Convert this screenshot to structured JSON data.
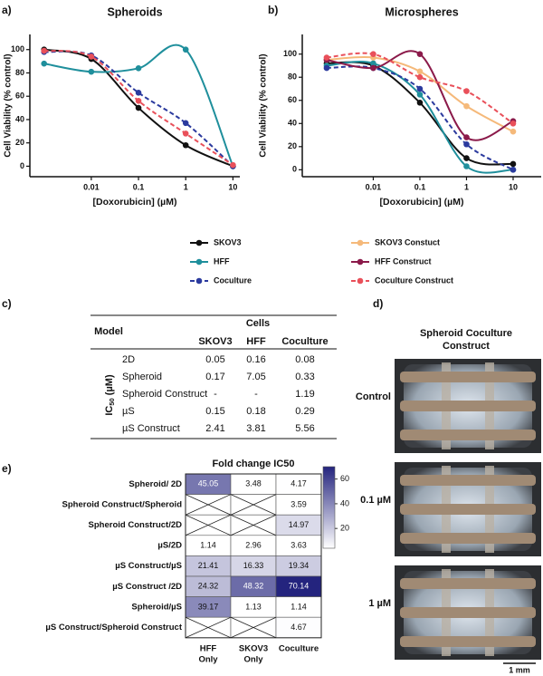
{
  "panel_labels": [
    "a)",
    "b)",
    "c)",
    "d)",
    "e)"
  ],
  "chart_data": [
    {
      "type": "line",
      "title": "Spheroids",
      "xlabel": "[Doxorubicin] (µM)",
      "ylabel": "Cell Viability  (% control)",
      "xscale": "log",
      "x": [
        0.001,
        0.01,
        0.1,
        1,
        10
      ],
      "xlim": [
        0.0005,
        14
      ],
      "xticks": [
        0.01,
        0.1,
        1,
        10
      ],
      "ylim": [
        -9,
        113
      ],
      "yticks": [
        0,
        20,
        40,
        60,
        80,
        100
      ],
      "series": [
        {
          "color": "#111111",
          "dashed": false,
          "values": [
            100,
            92,
            50,
            18,
            0
          ]
        },
        {
          "color": "#1f8f9c",
          "dashed": false,
          "values": [
            88,
            81,
            84,
            100,
            0
          ]
        },
        {
          "color": "#2b3a9e",
          "dashed": true,
          "values": [
            98,
            95,
            63,
            37,
            0
          ]
        },
        {
          "color": "#e9505a",
          "dashed": true,
          "values": [
            99,
            94,
            56,
            28,
            1
          ]
        }
      ]
    },
    {
      "type": "line",
      "title": "Microspheres",
      "xlabel": "[Doxorubicin] (µM)",
      "ylabel": "Cell Viability  (% control)",
      "xscale": "log",
      "x": [
        0.001,
        0.01,
        0.1,
        1,
        10
      ],
      "xlim": [
        0.0003,
        40
      ],
      "xticks": [
        0.01,
        0.1,
        1,
        10
      ],
      "ylim": [
        -6,
        117
      ],
      "yticks": [
        0,
        20,
        40,
        60,
        80,
        100
      ],
      "series": [
        {
          "name": "SKOV3",
          "color": "#111111",
          "dashed": false,
          "values": [
            92,
            90,
            58,
            10,
            5
          ]
        },
        {
          "name": "HFF",
          "color": "#1f8f9c",
          "dashed": false,
          "values": [
            90,
            92,
            65,
            3,
            0
          ]
        },
        {
          "name": "Coculture",
          "color": "#2b3a9e",
          "dashed": true,
          "values": [
            88,
            88,
            70,
            22,
            0
          ]
        },
        {
          "name": "SKOV3 Constuct",
          "color": "#f5b97a",
          "dashed": false,
          "values": [
            95,
            97,
            85,
            55,
            33
          ]
        },
        {
          "name": "HFF Construct",
          "color": "#8b1a4a",
          "dashed": false,
          "values": [
            95,
            88,
            100,
            28,
            42
          ]
        },
        {
          "name": "Coculture Construct",
          "color": "#e9505a",
          "dashed": true,
          "values": [
            97,
            100,
            80,
            68,
            40
          ]
        }
      ]
    },
    {
      "type": "heatmap",
      "title": "Fold change IC50",
      "rows": [
        "Spheroid/ 2D",
        "Spheroid Construct/Spheroid",
        "Spheroid Construct/2D",
        "µS/2D",
        "µS Construct/µS",
        "µS Construct /2D",
        "Spheroid/µS",
        "µS Construct/Spheroid Construct"
      ],
      "columns": [
        [
          "HFF",
          "Only"
        ],
        [
          "SKOV3",
          "Only"
        ],
        [
          "Coculture"
        ]
      ],
      "values": [
        [
          45.05,
          3.48,
          4.17
        ],
        [
          null,
          null,
          3.59
        ],
        [
          null,
          null,
          14.97
        ],
        [
          1.14,
          2.96,
          3.63
        ],
        [
          21.41,
          16.33,
          19.34
        ],
        [
          24.32,
          48.32,
          70.14
        ],
        [
          39.17,
          1.13,
          1.14
        ],
        [
          null,
          null,
          4.67
        ]
      ],
      "clim": [
        4,
        70
      ],
      "cticks": [
        20,
        40,
        60
      ],
      "colors": [
        "#ffffff",
        "#24247e"
      ]
    }
  ],
  "table": {
    "stub_header": "Model",
    "group_header": "Cells",
    "columns": [
      "SKOV3",
      "HFF",
      "Coculture"
    ],
    "row_group": {
      "main": "IC",
      "sub": "50",
      "unit": " (µM)"
    },
    "rows": [
      [
        "2D",
        0.05,
        0.16,
        0.08
      ],
      [
        "Spheroid",
        0.17,
        7.05,
        0.33
      ],
      [
        "Spheroid Construct",
        "-",
        "-",
        1.19
      ],
      [
        "µS",
        0.15,
        0.18,
        0.29
      ],
      [
        "µS Construct",
        2.41,
        3.81,
        5.56
      ]
    ]
  },
  "images": {
    "title": [
      "Spheroid Coculture",
      "Construct"
    ],
    "labels": [
      "Control",
      "0.1 µM",
      "1 µM"
    ],
    "scale_bar": "1 mm"
  }
}
